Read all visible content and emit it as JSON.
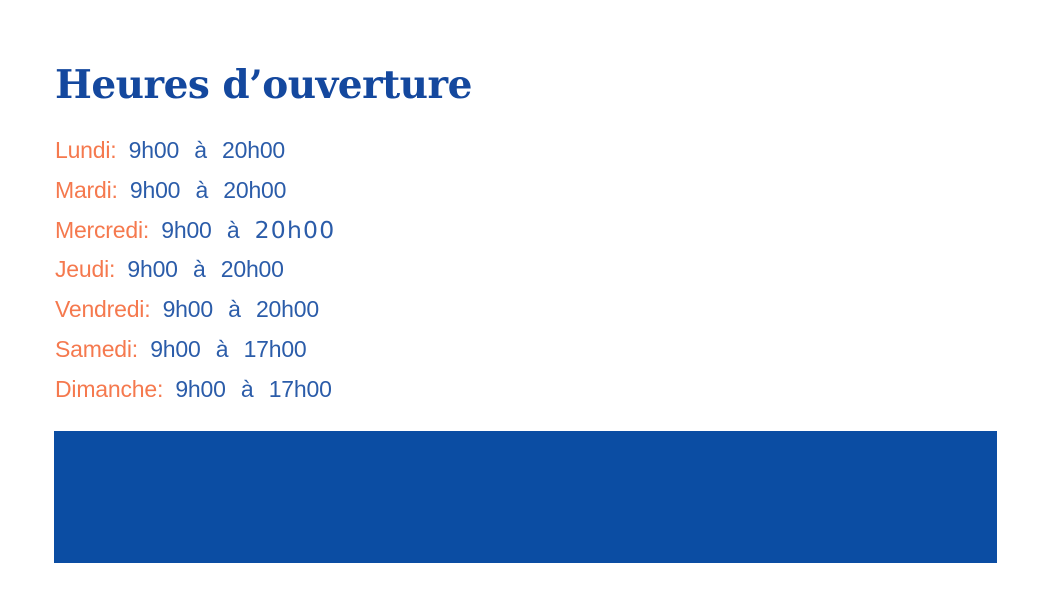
{
  "colors": {
    "background": "#FFFFFF",
    "title": "#14489E",
    "day": "#F5794E",
    "time": "#2B5CA9",
    "banner": "#0B4DA3"
  },
  "header": {
    "title": "Heures d’ouverture"
  },
  "hours": {
    "rows": [
      {
        "day": "Lundi:",
        "open": "9h00",
        "sep": "à",
        "close": "20h00"
      },
      {
        "day": "Mardi:",
        "open": "9h00",
        "sep": "à",
        "close": "20h00"
      },
      {
        "day": "Mercredi:",
        "open": "9h00",
        "sep": "à",
        "close": "20h00"
      },
      {
        "day": "Jeudi:",
        "open": "9h00",
        "sep": "à",
        "close": "20h00"
      },
      {
        "day": "Vendredi:",
        "open": "9h00",
        "sep": "à",
        "close": "20h00"
      },
      {
        "day": "Samedi:",
        "open": "9h00",
        "sep": "à",
        "close": "17h00"
      },
      {
        "day": "Dimanche:",
        "open": "9h00",
        "sep": "à",
        "close": "17h00"
      }
    ]
  }
}
